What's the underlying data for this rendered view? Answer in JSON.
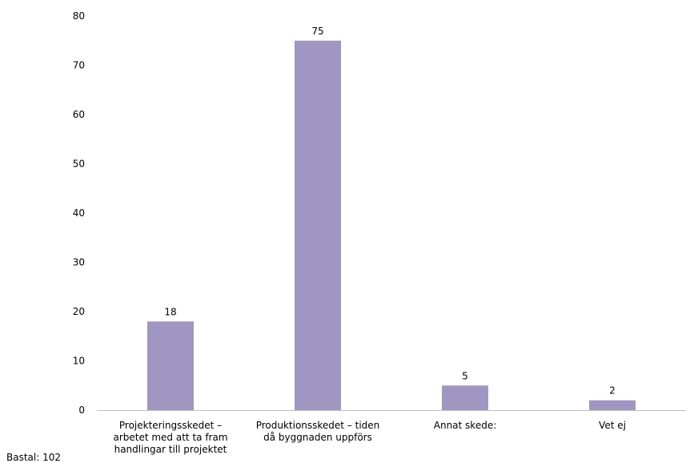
{
  "chart_data": {
    "type": "bar",
    "title": "",
    "xlabel": "",
    "ylabel": "",
    "categories": [
      [
        "Projekteringsskedet –",
        "arbetet med att ta fram",
        "handlingar till projektet"
      ],
      [
        "Produktionsskedet – tiden",
        "då byggnaden uppförs"
      ],
      [
        "Annat skede:"
      ],
      [
        "Vet ej"
      ]
    ],
    "values": [
      18,
      75,
      5,
      2
    ],
    "data_labels": [
      "18",
      "75",
      "5",
      "2"
    ],
    "ylim": [
      0,
      80
    ],
    "yticks": [
      0,
      10,
      20,
      30,
      40,
      50,
      60,
      70,
      80
    ],
    "grid": false,
    "legend": "none",
    "bar_color": "#9f97c1"
  },
  "footnote": "Bastal: 102"
}
